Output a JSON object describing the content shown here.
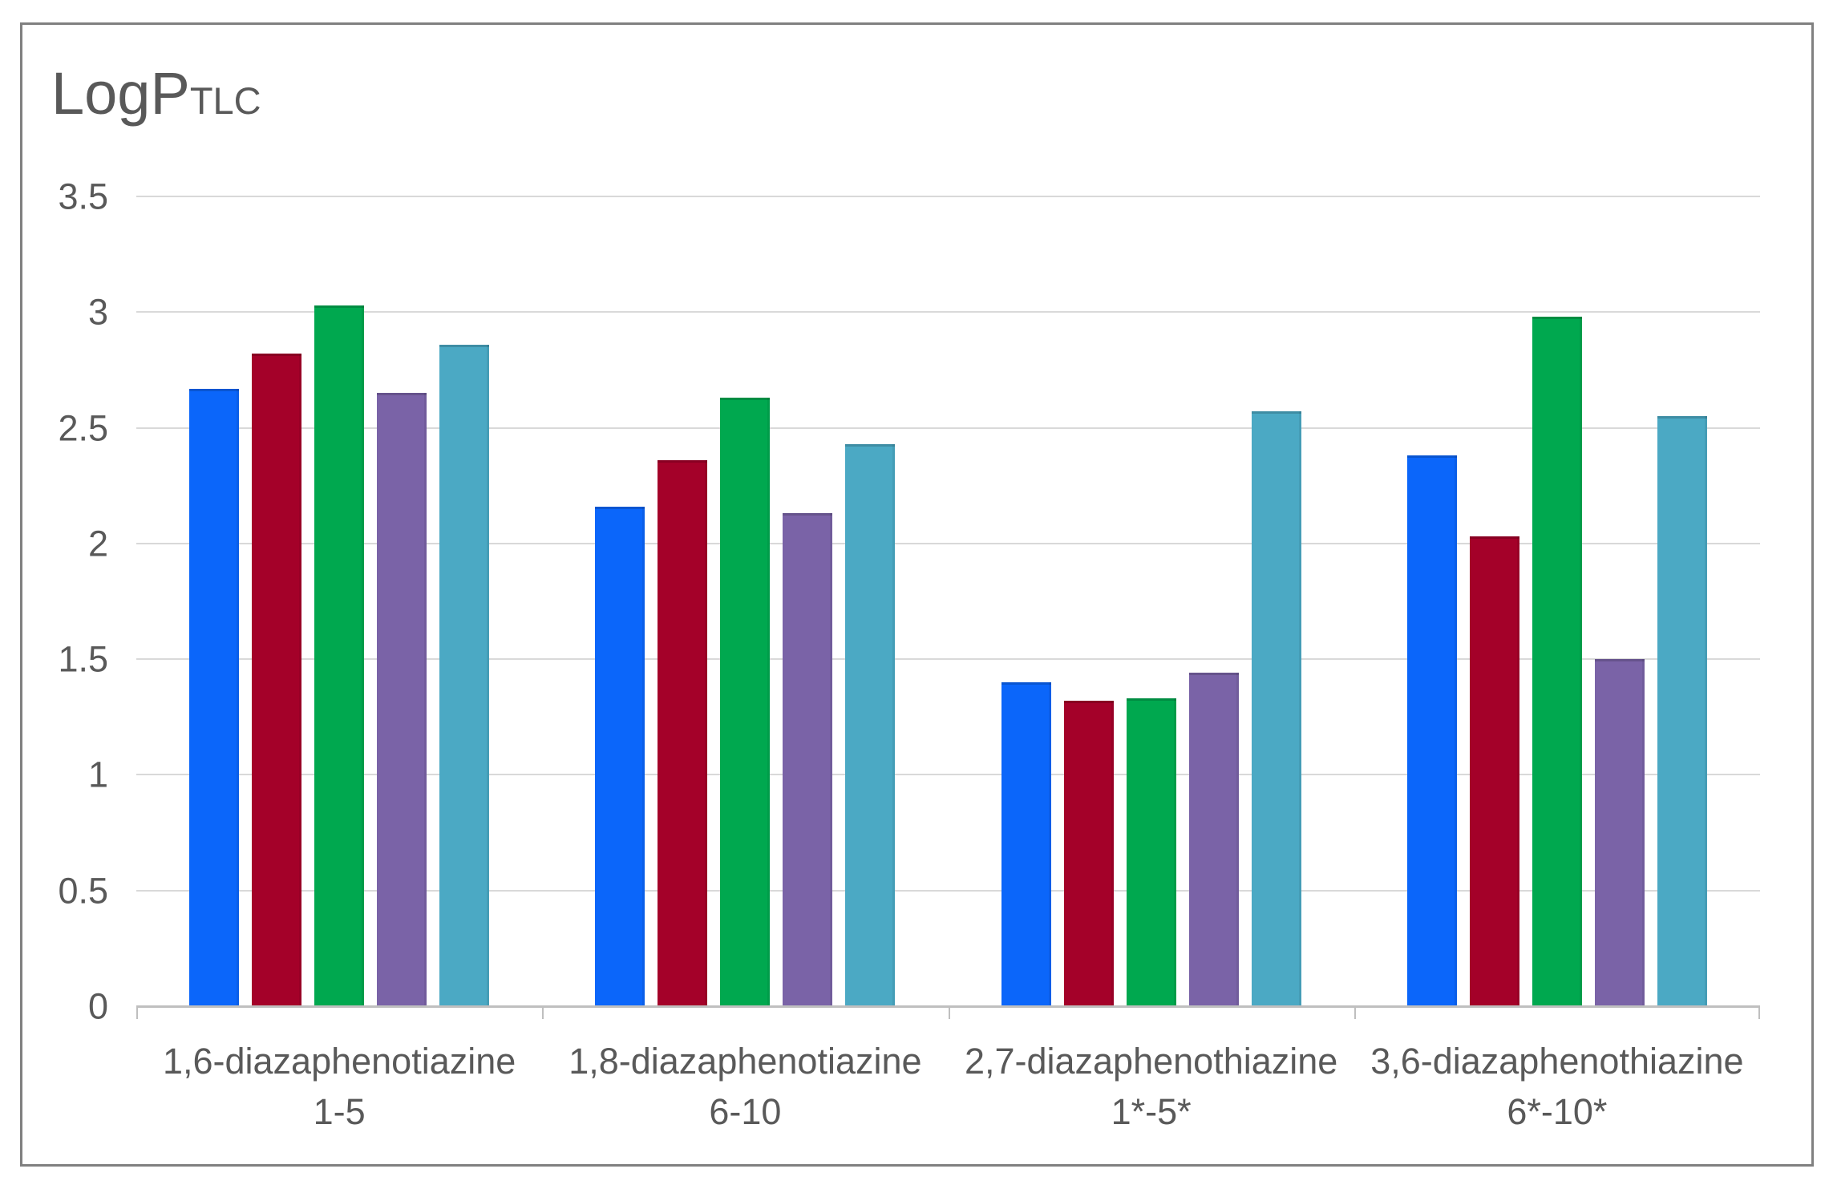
{
  "title": {
    "main": "LogP",
    "subscript": "TLC"
  },
  "chart_data": {
    "type": "bar",
    "title": "LogP_TLC",
    "categories": [
      {
        "line1": "1,6-diazaphenotiazine",
        "line2": "1-5"
      },
      {
        "line1": "1,8-diazaphenotiazine",
        "line2": "6-10"
      },
      {
        "line1": "2,7-diazaphenothiazine",
        "line2": "1*-5*"
      },
      {
        "line1": "3,6-diazaphenothiazine",
        "line2": "6*-10*"
      }
    ],
    "series": [
      {
        "name": "blue",
        "color": "#0b66fa",
        "values": [
          2.67,
          2.16,
          1.4,
          2.38
        ]
      },
      {
        "name": "dark-red",
        "color": "#a40129",
        "values": [
          2.82,
          2.36,
          1.32,
          2.03
        ]
      },
      {
        "name": "green",
        "color": "#00a84f",
        "values": [
          3.03,
          2.63,
          1.33,
          2.98
        ]
      },
      {
        "name": "purple",
        "color": "#7a63a7",
        "values": [
          2.65,
          2.13,
          1.44,
          1.5
        ]
      },
      {
        "name": "teal",
        "color": "#4ba9c4",
        "values": [
          2.86,
          2.43,
          2.57,
          2.55
        ]
      }
    ],
    "ylim": [
      0,
      3.5
    ],
    "ytick_labels": [
      "3.5",
      "3",
      "2.5",
      "2",
      "1.5",
      "1",
      "0.5",
      "0"
    ],
    "grid": true,
    "legend": false,
    "xlabel": "",
    "ylabel": ""
  },
  "colors": {
    "gridline": "#d9d9d9",
    "axis_line": "#bfbfbf",
    "text": "#595959",
    "frame_border": "#808080",
    "background": "#ffffff"
  }
}
